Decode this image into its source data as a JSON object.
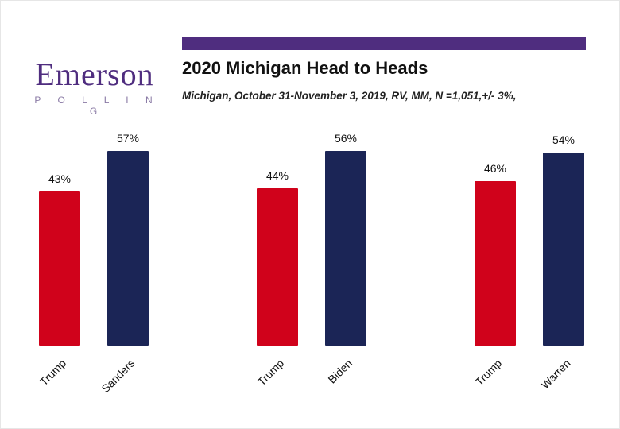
{
  "logo": {
    "name": "Emerson",
    "subtitle": "P O L L I N G"
  },
  "header": {
    "title": "2020 Michigan Head to Heads",
    "subtitle": "Michigan, October 31-November 3, 2019, RV, MM, N =1,051,+/- 3%,"
  },
  "colors": {
    "purple": "#4F2D7F",
    "red": "#D0021B",
    "navy": "#1B2556"
  },
  "chart_data": {
    "type": "bar",
    "title": "2020 Michigan Head to Heads",
    "subtitle": "Michigan, October 31-November 3, 2019, RV, MM, N =1,051,+/- 3%,",
    "value_suffix": "%",
    "ylim": [
      0,
      60
    ],
    "grid": false,
    "legend": "none",
    "groups": [
      {
        "matchup": "Trump vs Sanders",
        "bars": [
          {
            "label": "Trump",
            "value": 43,
            "color": "red"
          },
          {
            "label": "Sanders",
            "value": 57,
            "color": "navy"
          }
        ]
      },
      {
        "matchup": "Trump vs Biden",
        "bars": [
          {
            "label": "Trump",
            "value": 44,
            "color": "red"
          },
          {
            "label": "Biden",
            "value": 56,
            "color": "navy"
          }
        ]
      },
      {
        "matchup": "Trump vs Warren",
        "bars": [
          {
            "label": "Trump",
            "value": 46,
            "color": "red"
          },
          {
            "label": "Warren",
            "value": 54,
            "color": "navy"
          }
        ]
      }
    ]
  }
}
